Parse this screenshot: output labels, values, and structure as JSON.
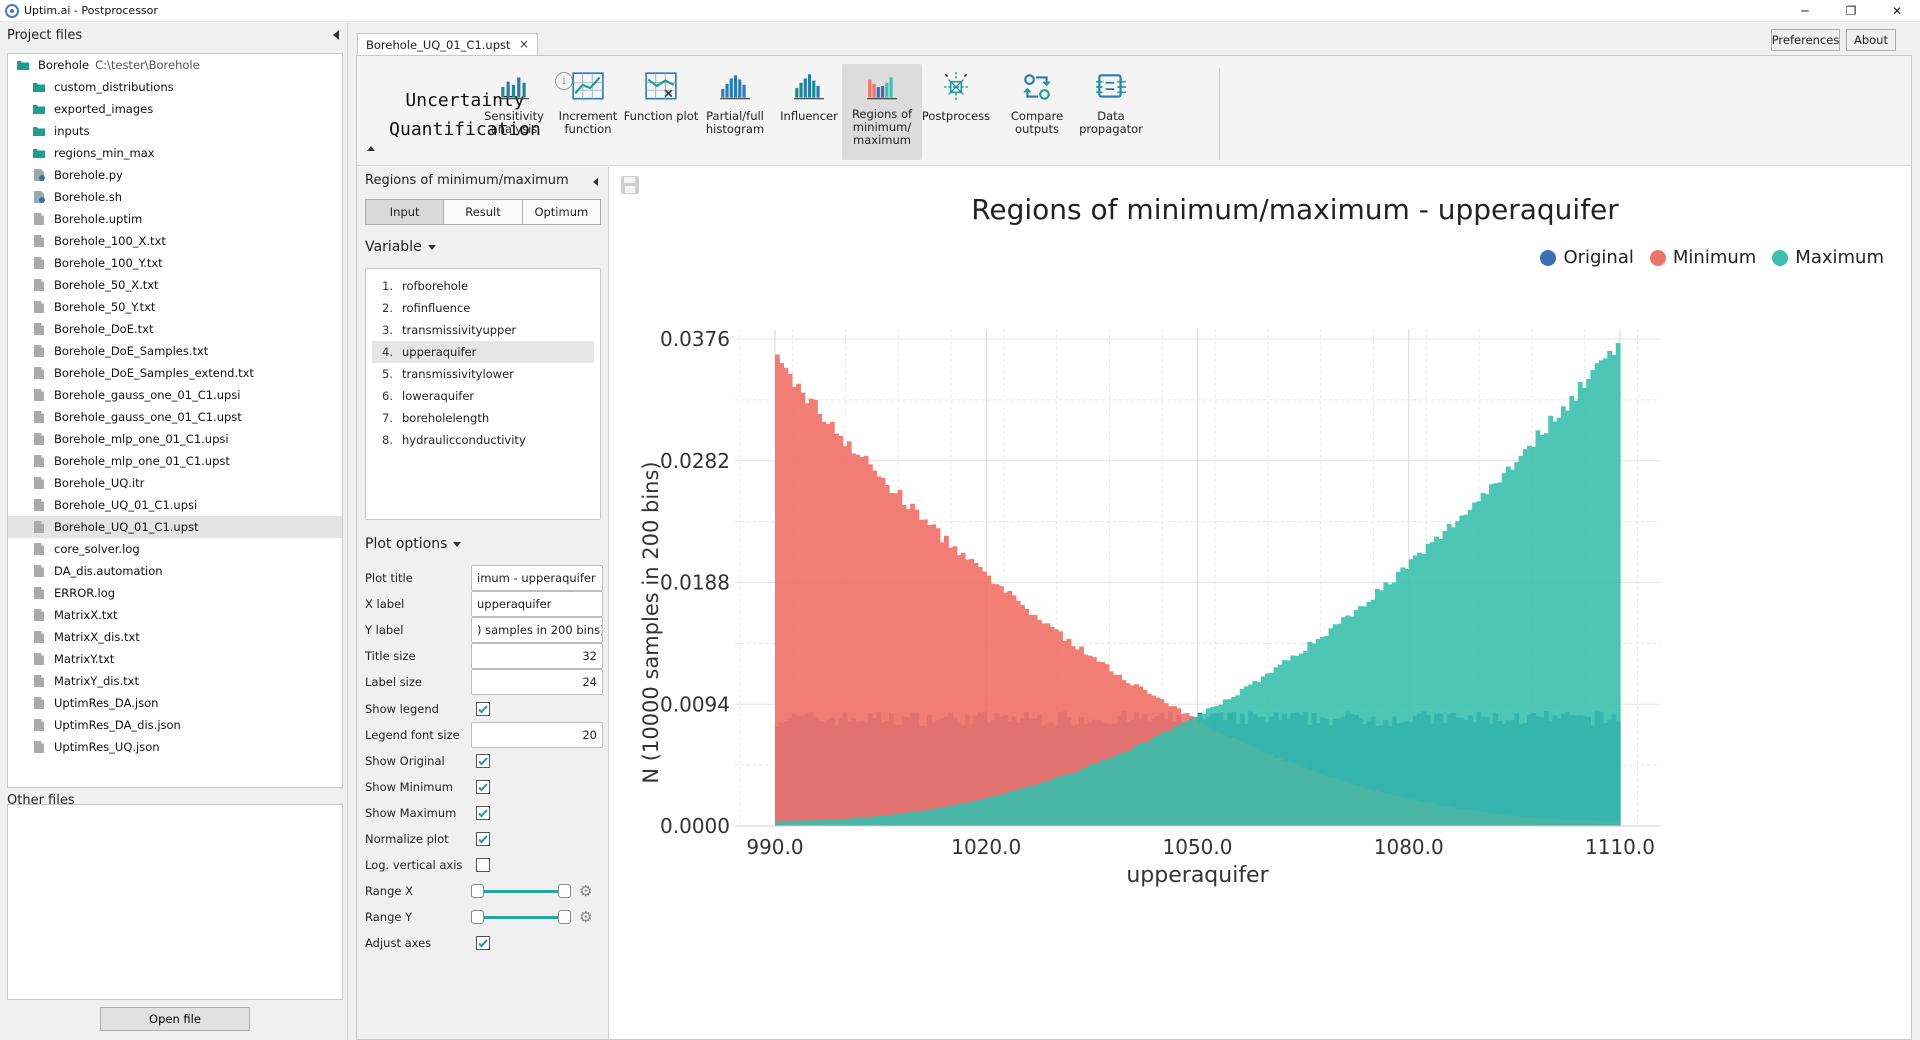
{
  "window": {
    "title": "Uptim.ai - Postprocessor",
    "minimize": "─",
    "maximize": "❐",
    "close": "✕"
  },
  "left": {
    "project_header": "Project files",
    "root": {
      "name": "Borehole",
      "path": "C:\\tester\\Borehole"
    },
    "items": [
      {
        "name": "custom_distributions",
        "kind": "folder"
      },
      {
        "name": "exported_images",
        "kind": "folder"
      },
      {
        "name": "inputs",
        "kind": "folder"
      },
      {
        "name": "regions_min_max",
        "kind": "folder"
      },
      {
        "name": "Borehole.py",
        "kind": "script"
      },
      {
        "name": "Borehole.sh",
        "kind": "script"
      },
      {
        "name": "Borehole.uptim",
        "kind": "file"
      },
      {
        "name": "Borehole_100_X.txt",
        "kind": "file"
      },
      {
        "name": "Borehole_100_Y.txt",
        "kind": "file"
      },
      {
        "name": "Borehole_50_X.txt",
        "kind": "file"
      },
      {
        "name": "Borehole_50_Y.txt",
        "kind": "file"
      },
      {
        "name": "Borehole_DoE.txt",
        "kind": "file"
      },
      {
        "name": "Borehole_DoE_Samples.txt",
        "kind": "file"
      },
      {
        "name": "Borehole_DoE_Samples_extend.txt",
        "kind": "file"
      },
      {
        "name": "Borehole_gauss_one_01_C1.upsi",
        "kind": "file"
      },
      {
        "name": "Borehole_gauss_one_01_C1.upst",
        "kind": "file"
      },
      {
        "name": "Borehole_mlp_one_01_C1.upsi",
        "kind": "file"
      },
      {
        "name": "Borehole_mlp_one_01_C1.upst",
        "kind": "file"
      },
      {
        "name": "Borehole_UQ.itr",
        "kind": "file"
      },
      {
        "name": "Borehole_UQ_01_C1.upsi",
        "kind": "file"
      },
      {
        "name": "Borehole_UQ_01_C1.upst",
        "kind": "file",
        "selected": true
      },
      {
        "name": "core_solver.log",
        "kind": "file"
      },
      {
        "name": "DA_dis.automation",
        "kind": "file"
      },
      {
        "name": "ERROR.log",
        "kind": "file"
      },
      {
        "name": "MatrixX.txt",
        "kind": "file"
      },
      {
        "name": "MatrixX_dis.txt",
        "kind": "file"
      },
      {
        "name": "MatrixY.txt",
        "kind": "file"
      },
      {
        "name": "MatrixY_dis.txt",
        "kind": "file"
      },
      {
        "name": "UptimRes_DA.json",
        "kind": "file"
      },
      {
        "name": "UptimRes_DA_dis.json",
        "kind": "file"
      },
      {
        "name": "UptimRes_UQ.json",
        "kind": "file"
      }
    ],
    "other_header": "Other files",
    "open_button": "Open file"
  },
  "top_buttons": {
    "preferences": "Preferences",
    "about": "About"
  },
  "tab": {
    "label": "Borehole_UQ_01_C1.upst",
    "close": "×"
  },
  "ribbon": {
    "title_line1": "Uncertainty",
    "title_line2": "Quantification",
    "info": "i",
    "buttons": [
      {
        "id": "sensitivity",
        "label": "Sensitivity analysis"
      },
      {
        "id": "increment",
        "label": "Increment function"
      },
      {
        "id": "function",
        "label": "Function plot"
      },
      {
        "id": "histogram",
        "label": "Partial/full histogram"
      },
      {
        "id": "influencer",
        "label": "Influencer"
      },
      {
        "id": "regions",
        "label": "Regions of minimum/ maximum",
        "active": true
      },
      {
        "id": "postprocess",
        "label": "Postprocess"
      },
      {
        "id": "compare",
        "label": "Compare outputs"
      },
      {
        "id": "propagator",
        "label": "Data propagator"
      }
    ]
  },
  "options": {
    "title": "Regions of minimum/maximum",
    "segments": [
      "Input",
      "Result",
      "Optimum"
    ],
    "active_segment": "Input",
    "variable_header": "Variable",
    "variables": [
      "rofborehole",
      "rofinfluence",
      "transmissivityupper",
      "upperaquifer",
      "transmissivitylower",
      "loweraquifer",
      "boreholelength",
      "hydraulicconductivity"
    ],
    "selected_variable": "upperaquifer",
    "plot_options_header": "Plot options",
    "rows": [
      {
        "label": "Plot title",
        "type": "text",
        "value": "imum - upperaquifer"
      },
      {
        "label": "X label",
        "type": "text",
        "value": "upperaquifer"
      },
      {
        "label": "Y label",
        "type": "text",
        "value": ") samples in 200 bins)"
      },
      {
        "label": "Title size",
        "type": "num",
        "value": "32"
      },
      {
        "label": "Label size",
        "type": "num",
        "value": "24"
      },
      {
        "label": "Show legend",
        "type": "check",
        "checked": true
      },
      {
        "label": "Legend font size",
        "type": "num",
        "value": "20"
      },
      {
        "label": "Show Original",
        "type": "check",
        "checked": true
      },
      {
        "label": "Show Minimum",
        "type": "check",
        "checked": true
      },
      {
        "label": "Show Maximum",
        "type": "check",
        "checked": true
      },
      {
        "label": "Normalize plot",
        "type": "check",
        "checked": true
      },
      {
        "label": "Log. vertical axis",
        "type": "check",
        "checked": false
      },
      {
        "label": "Range X",
        "type": "range",
        "min": 0,
        "max": 1
      },
      {
        "label": "Range Y",
        "type": "range",
        "min": 0,
        "max": 1
      },
      {
        "label": "Adjust axes",
        "type": "check",
        "checked": true
      }
    ]
  },
  "colors": {
    "accent": "#26a69a",
    "original": "#3a6fb5",
    "minimum": "#f0736a",
    "maximum": "#3dbfad"
  },
  "chart_data": {
    "type": "bar",
    "title": "Regions of minimum/maximum - upperaquifer",
    "xlabel": "upperaquifer",
    "ylabel": "N (10000 samples in 200 bins)",
    "xlim": [
      990.0,
      1110.0
    ],
    "ylim": [
      0.0,
      0.0376
    ],
    "xticks": [
      "990.0",
      "1020.0",
      "1050.0",
      "1080.0",
      "1110.0"
    ],
    "yticks": [
      "0.0000",
      "0.0094",
      "0.0188",
      "0.0282",
      "0.0376"
    ],
    "bins": 200,
    "legend_position": "top-right",
    "series": [
      {
        "name": "Original",
        "shape": "uniform",
        "level": 0.0083
      },
      {
        "name": "Minimum",
        "shape": "decreasing",
        "start": 0.036,
        "end": 0.0004
      },
      {
        "name": "Maximum",
        "shape": "increasing",
        "start": 0.0004,
        "end": 0.0376
      }
    ],
    "grid": true
  }
}
